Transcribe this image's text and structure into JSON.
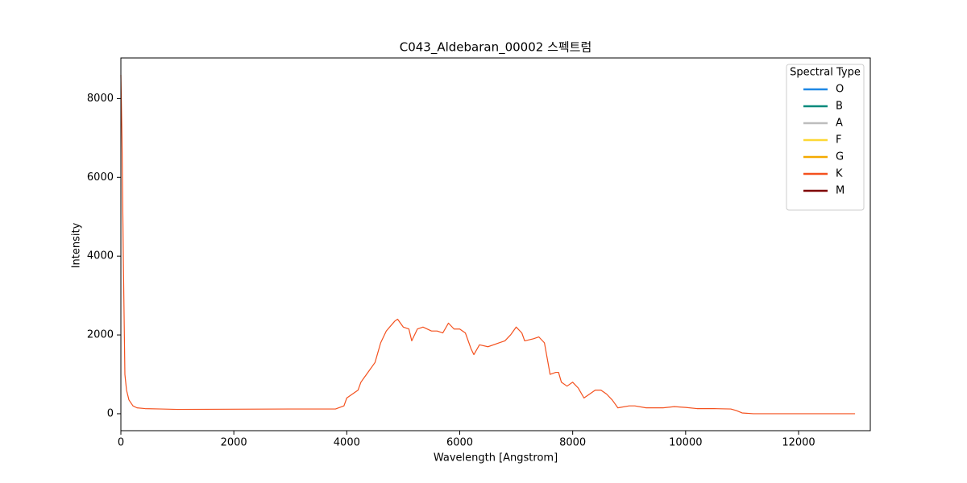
{
  "chart_data": {
    "type": "line",
    "title": "C043_Aldebaran_00002 스펙트럼",
    "x_label": "Wavelength [Angstrom]",
    "y_label": "Intensity",
    "xlim": [
      0,
      13270
    ],
    "ylim": [
      -430,
      9030
    ],
    "xticks": [
      0,
      2000,
      4000,
      6000,
      8000,
      10000,
      12000
    ],
    "yticks": [
      0,
      2000,
      4000,
      6000,
      8000
    ],
    "grid": false,
    "legend_title": "Spectral Type",
    "legend_position": "upper right",
    "series": [
      {
        "name": "O",
        "color": "#1e88e5",
        "x": [],
        "values": []
      },
      {
        "name": "B",
        "color": "#00897b",
        "x": [],
        "values": []
      },
      {
        "name": "A",
        "color": "#bdbdbd",
        "x": [],
        "values": []
      },
      {
        "name": "F",
        "color": "#fdd835",
        "x": [],
        "values": []
      },
      {
        "name": "G",
        "color": "#f4a900",
        "x": [],
        "values": []
      },
      {
        "name": "K",
        "color": "#f4511e",
        "x": [
          0,
          20,
          43,
          71,
          100,
          143,
          214,
          285,
          428,
          713,
          1000,
          2000,
          3000,
          3800,
          3950,
          4000,
          4100,
          4200,
          4250,
          4300,
          4400,
          4500,
          4600,
          4700,
          4850,
          4900,
          5000,
          5100,
          5150,
          5250,
          5350,
          5500,
          5600,
          5700,
          5800,
          5900,
          6000,
          6100,
          6200,
          6250,
          6350,
          6500,
          6700,
          6800,
          6900,
          7000,
          7100,
          7150,
          7300,
          7400,
          7500,
          7600,
          7700,
          7750,
          7800,
          7900,
          8000,
          8100,
          8200,
          8300,
          8400,
          8500,
          8600,
          8700,
          8800,
          9000,
          9100,
          9300,
          9600,
          9800,
          10000,
          10200,
          10500,
          10800,
          10900,
          11000,
          11200,
          12000,
          13000
        ],
        "values": [
          8600,
          7000,
          4000,
          1000,
          600,
          350,
          200,
          150,
          130,
          120,
          110,
          115,
          120,
          120,
          200,
          400,
          500,
          600,
          800,
          900,
          1100,
          1300,
          1800,
          2100,
          2350,
          2400,
          2200,
          2150,
          1850,
          2150,
          2200,
          2100,
          2100,
          2050,
          2300,
          2150,
          2150,
          2050,
          1650,
          1500,
          1750,
          1700,
          1800,
          1850,
          2000,
          2200,
          2050,
          1850,
          1900,
          1950,
          1800,
          1000,
          1050,
          1050,
          800,
          700,
          800,
          650,
          400,
          500,
          600,
          600,
          500,
          350,
          150,
          200,
          200,
          150,
          150,
          180,
          160,
          130,
          130,
          120,
          80,
          20,
          0,
          0,
          0
        ]
      },
      {
        "name": "M",
        "color": "#7f0000",
        "x": [],
        "values": []
      }
    ]
  }
}
